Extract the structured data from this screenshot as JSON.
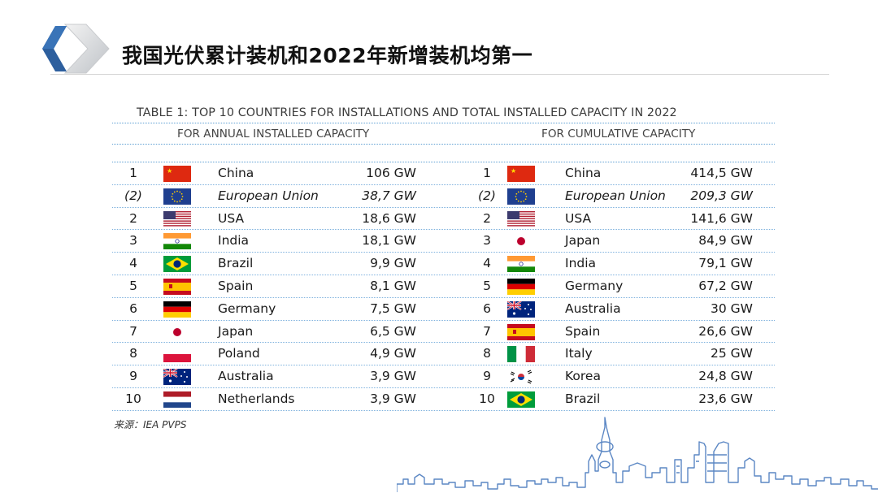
{
  "title": "我国光伏累计装机和2022年新增装机均第一",
  "table": {
    "title": "TABLE 1: TOP 10 COUNTRIES FOR INSTALLATIONS AND TOTAL INSTALLED CAPACITY IN 2022",
    "annual_header": "FOR ANNUAL INSTALLED CAPACITY",
    "cumulative_header": "FOR CUMULATIVE CAPACITY",
    "rows": [
      {
        "annual": {
          "rank": "1",
          "flag": "china-flag",
          "country": "China",
          "value": "106 GW"
        },
        "cumulative": {
          "rank": "1",
          "flag": "china-flag",
          "country": "China",
          "value": "414,5 GW"
        },
        "italic": false
      },
      {
        "annual": {
          "rank": "(2)",
          "flag": "eu-flag",
          "country": "European Union",
          "value": "38,7 GW"
        },
        "cumulative": {
          "rank": "(2)",
          "flag": "eu-flag",
          "country": "European Union",
          "value": "209,3 GW"
        },
        "italic": true
      },
      {
        "annual": {
          "rank": "2",
          "flag": "usa-flag",
          "country": "USA",
          "value": "18,6 GW"
        },
        "cumulative": {
          "rank": "2",
          "flag": "usa-flag",
          "country": "USA",
          "value": "141,6 GW"
        },
        "italic": false
      },
      {
        "annual": {
          "rank": "3",
          "flag": "india-flag",
          "country": "India",
          "value": "18,1 GW"
        },
        "cumulative": {
          "rank": "3",
          "flag": "japan-flag",
          "country": "Japan",
          "value": "84,9 GW"
        },
        "italic": false
      },
      {
        "annual": {
          "rank": "4",
          "flag": "brazil-flag",
          "country": "Brazil",
          "value": "9,9 GW"
        },
        "cumulative": {
          "rank": "4",
          "flag": "india-flag",
          "country": "India",
          "value": "79,1 GW"
        },
        "italic": false
      },
      {
        "annual": {
          "rank": "5",
          "flag": "spain-flag",
          "country": "Spain",
          "value": "8,1 GW"
        },
        "cumulative": {
          "rank": "5",
          "flag": "germany-flag",
          "country": "Germany",
          "value": "67,2 GW"
        },
        "italic": false
      },
      {
        "annual": {
          "rank": "6",
          "flag": "germany-flag",
          "country": "Germany",
          "value": "7,5 GW"
        },
        "cumulative": {
          "rank": "6",
          "flag": "australia-flag",
          "country": "Australia",
          "value": "30 GW"
        },
        "italic": false
      },
      {
        "annual": {
          "rank": "7",
          "flag": "japan-flag",
          "country": "Japan",
          "value": "6,5 GW"
        },
        "cumulative": {
          "rank": "7",
          "flag": "spain-flag",
          "country": "Spain",
          "value": "26,6 GW"
        },
        "italic": false
      },
      {
        "annual": {
          "rank": "8",
          "flag": "poland-flag",
          "country": "Poland",
          "value": "4,9 GW"
        },
        "cumulative": {
          "rank": "8",
          "flag": "italy-flag",
          "country": "Italy",
          "value": "25 GW"
        },
        "italic": false
      },
      {
        "annual": {
          "rank": "9",
          "flag": "australia-flag",
          "country": "Australia",
          "value": "3,9 GW"
        },
        "cumulative": {
          "rank": "9",
          "flag": "korea-flag",
          "country": "Korea",
          "value": "24,8 GW"
        },
        "italic": false
      },
      {
        "annual": {
          "rank": "10",
          "flag": "netherlands-flag",
          "country": "Netherlands",
          "value": "3,9 GW"
        },
        "cumulative": {
          "rank": "10",
          "flag": "brazil-flag",
          "country": "Brazil",
          "value": "23,6 GW"
        },
        "italic": false
      }
    ]
  },
  "source": "来源：IEA PVPS",
  "colors": {
    "accent_blue": "#2d5f9e",
    "dotted_rule": "#5e9fd3",
    "skyline": "#5b87c4"
  }
}
